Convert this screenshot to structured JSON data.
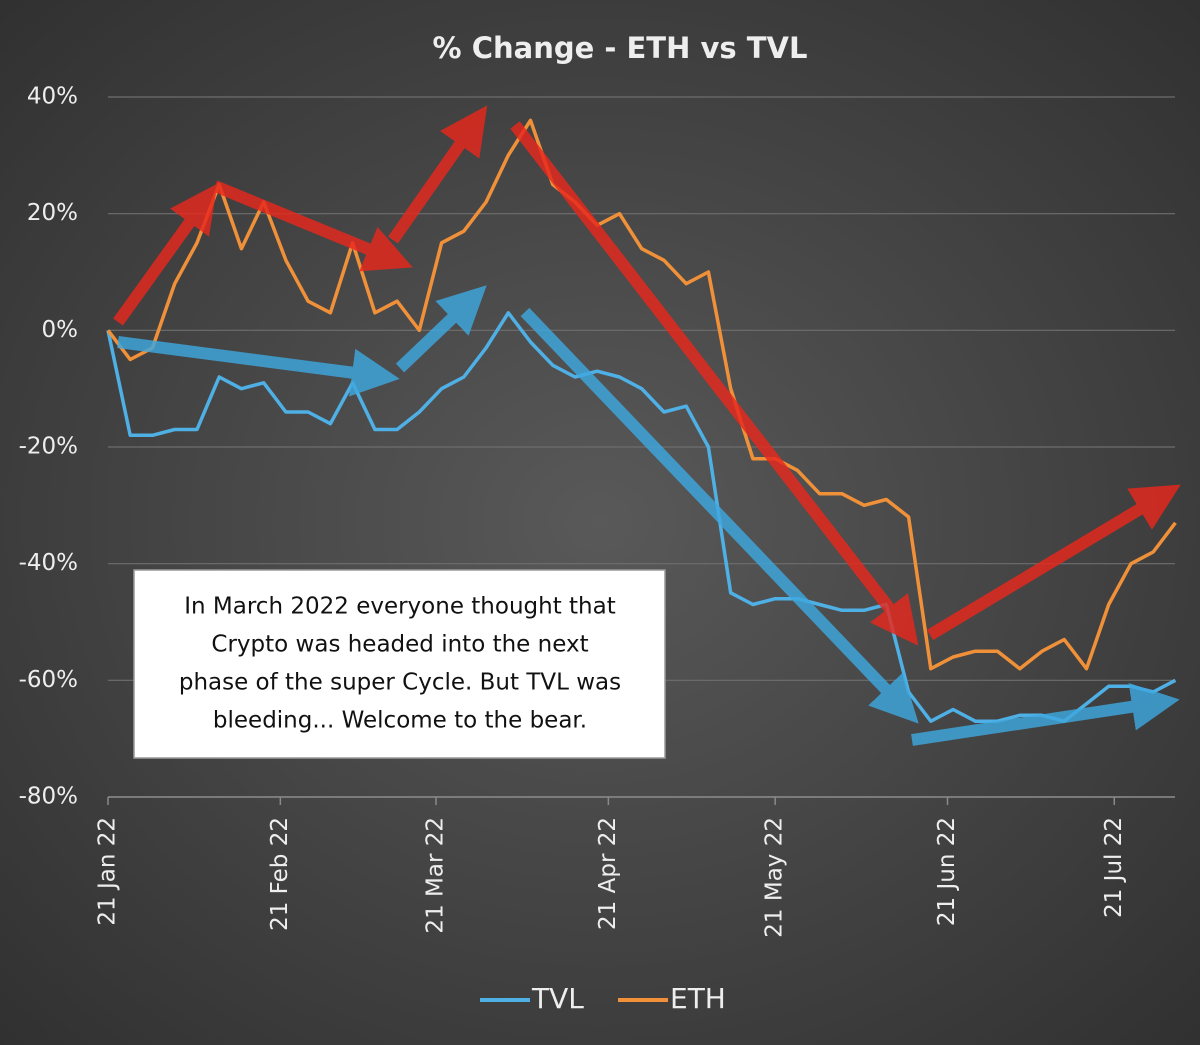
{
  "chart_data": {
    "type": "line",
    "title": "% Change - ETH vs TVL",
    "x": [
      "2022-01-21",
      "2022-01-25",
      "2022-01-29",
      "2022-02-02",
      "2022-02-06",
      "2022-02-10",
      "2022-02-14",
      "2022-02-18",
      "2022-02-22",
      "2022-02-26",
      "2022-03-02",
      "2022-03-06",
      "2022-03-10",
      "2022-03-14",
      "2022-03-18",
      "2022-03-22",
      "2022-03-26",
      "2022-03-30",
      "2022-04-03",
      "2022-04-07",
      "2022-04-11",
      "2022-04-15",
      "2022-04-19",
      "2022-04-23",
      "2022-04-27",
      "2022-05-01",
      "2022-05-05",
      "2022-05-09",
      "2022-05-13",
      "2022-05-17",
      "2022-05-21",
      "2022-05-25",
      "2022-05-29",
      "2022-06-02",
      "2022-06-06",
      "2022-06-10",
      "2022-06-14",
      "2022-06-18",
      "2022-06-22",
      "2022-06-26",
      "2022-06-30",
      "2022-07-04",
      "2022-07-08",
      "2022-07-12",
      "2022-07-16",
      "2022-07-20",
      "2022-07-24",
      "2022-07-28",
      "2022-08-01"
    ],
    "series": [
      {
        "name": "TVL",
        "color": "#4fb0e6",
        "values": [
          0,
          -18,
          -18,
          -17,
          -17,
          -8,
          -10,
          -9,
          -14,
          -14,
          -16,
          -9,
          -17,
          -17,
          -14,
          -10,
          -8,
          -3,
          3,
          -2,
          -6,
          -8,
          -7,
          -8,
          -10,
          -14,
          -13,
          -20,
          -45,
          -47,
          -46,
          -46,
          -47,
          -48,
          -48,
          -47,
          -62,
          -67,
          -65,
          -67,
          -67,
          -66,
          -66,
          -67,
          -64,
          -61,
          -61,
          -62,
          -60
        ]
      },
      {
        "name": "ETH",
        "color": "#f0913a",
        "values": [
          0,
          -5,
          -3,
          8,
          15,
          25,
          14,
          22,
          12,
          5,
          3,
          15,
          3,
          5,
          0,
          15,
          17,
          22,
          30,
          36,
          25,
          22,
          18,
          20,
          14,
          12,
          8,
          10,
          -10,
          -22,
          -22,
          -24,
          -28,
          -28,
          -30,
          -29,
          -32,
          -58,
          -56,
          -55,
          -55,
          -58,
          -55,
          -53,
          -58,
          -47,
          -40,
          -38,
          -33
        ]
      }
    ],
    "xlim": [
      "2022-01-21",
      "2022-08-02"
    ],
    "xticks": [
      {
        "value": "2022-01-21",
        "label": "21 Jan 22"
      },
      {
        "value": "2022-02-21",
        "label": "21 Feb 22"
      },
      {
        "value": "2022-03-21",
        "label": "21 Mar 22"
      },
      {
        "value": "2022-04-21",
        "label": "21 Apr 22"
      },
      {
        "value": "2022-05-21",
        "label": "21 May 22"
      },
      {
        "value": "2022-06-21",
        "label": "21 Jun 22"
      },
      {
        "value": "2022-07-21",
        "label": "21 Jul 22"
      }
    ],
    "ylim": [
      -80,
      40
    ],
    "yticks": [
      {
        "value": -80,
        "label": "-80%"
      },
      {
        "value": -60,
        "label": "-60%"
      },
      {
        "value": -40,
        "label": "-40%"
      },
      {
        "value": -20,
        "label": "-20%"
      },
      {
        "value": 0,
        "label": "0%"
      },
      {
        "value": 20,
        "label": "20%"
      },
      {
        "value": 40,
        "label": "40%"
      }
    ],
    "grid": true,
    "legend": "bottom",
    "annotation": [
      "In March 2022 everyone thought that",
      "Crypto was headed into the next",
      "phase of the super Cycle. But TVL was",
      "bleeding... Welcome to the bear."
    ]
  }
}
